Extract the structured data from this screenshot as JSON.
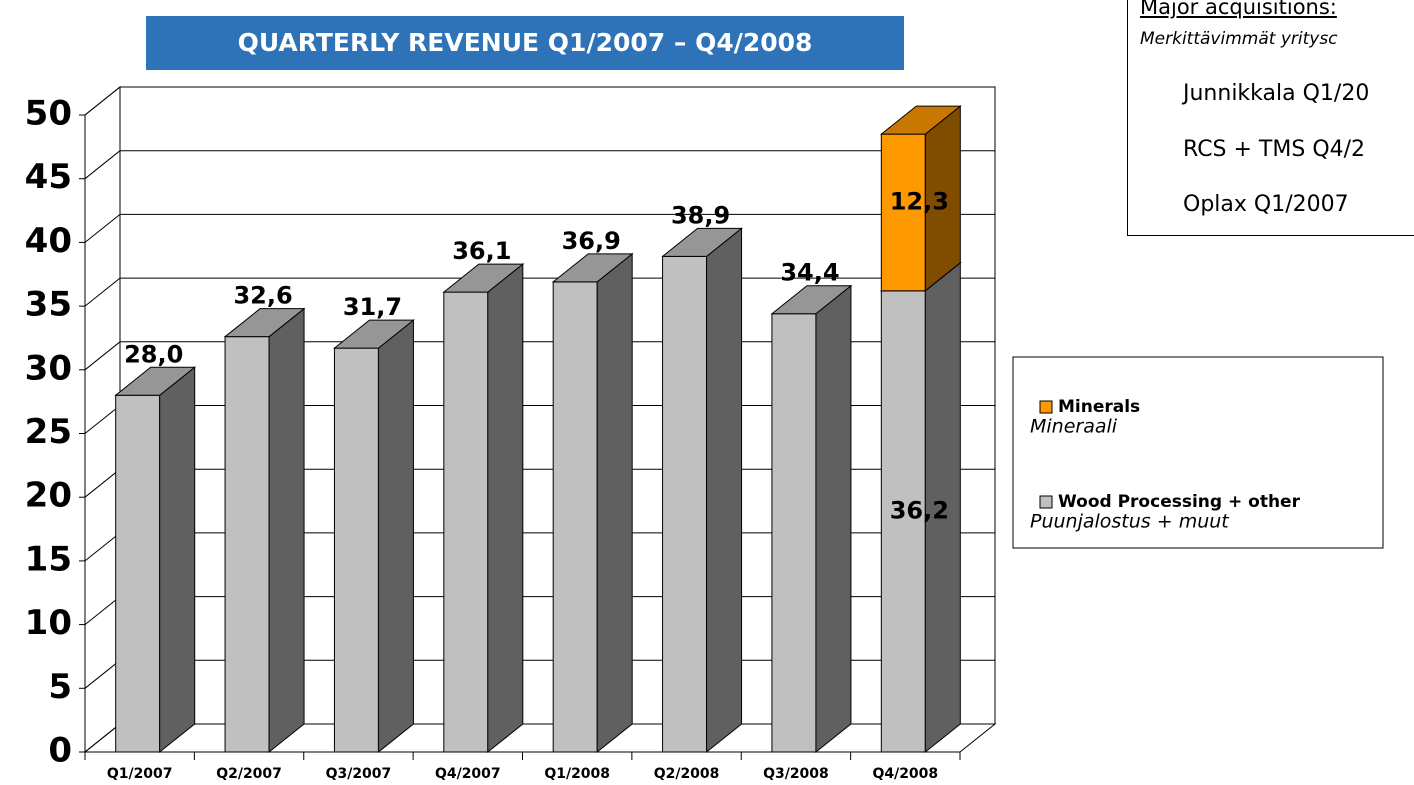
{
  "chart_data": {
    "type": "bar3d_stacked",
    "title": "QUARTERLY REVENUE Q1/2007 – Q4/2008",
    "categories": [
      "Q1/2007",
      "Q2/2007",
      "Q3/2007",
      "Q4/2007",
      "Q1/2008",
      "Q2/2008",
      "Q3/2008",
      "Q4/2008"
    ],
    "series": [
      {
        "name": "Wood Processing + other",
        "name_fi": "Puunjalostus + muut",
        "color": "#c0c0c0",
        "side_color": "#606060",
        "top_color": "#969696",
        "values": [
          28.0,
          32.6,
          31.7,
          36.1,
          36.9,
          38.9,
          34.4,
          36.2
        ],
        "value_labels": [
          "28,0",
          "32,6",
          "31,7",
          "36,1",
          "36,9",
          "38,9",
          "34,4",
          "36,2"
        ]
      },
      {
        "name": "Minerals",
        "name_fi": "Mineraali",
        "color": "#ff9900",
        "side_color": "#7f4c00",
        "top_color": "#c87800",
        "values": [
          null,
          null,
          null,
          null,
          null,
          null,
          null,
          12.3
        ],
        "value_labels": [
          null,
          null,
          null,
          null,
          null,
          null,
          null,
          "12,3"
        ]
      }
    ],
    "ylim": [
      0,
      50
    ],
    "yticks": [
      0,
      5,
      10,
      15,
      20,
      25,
      30,
      35,
      40,
      45,
      50
    ],
    "grid": true
  },
  "acquisitions": {
    "heading": "Major acquisitions:",
    "heading_fi": "Merkittävimmät yritysc",
    "items": [
      "Junnikkala Q1/20",
      "RCS + TMS Q4/2",
      "Oplax  Q1/2007"
    ]
  }
}
